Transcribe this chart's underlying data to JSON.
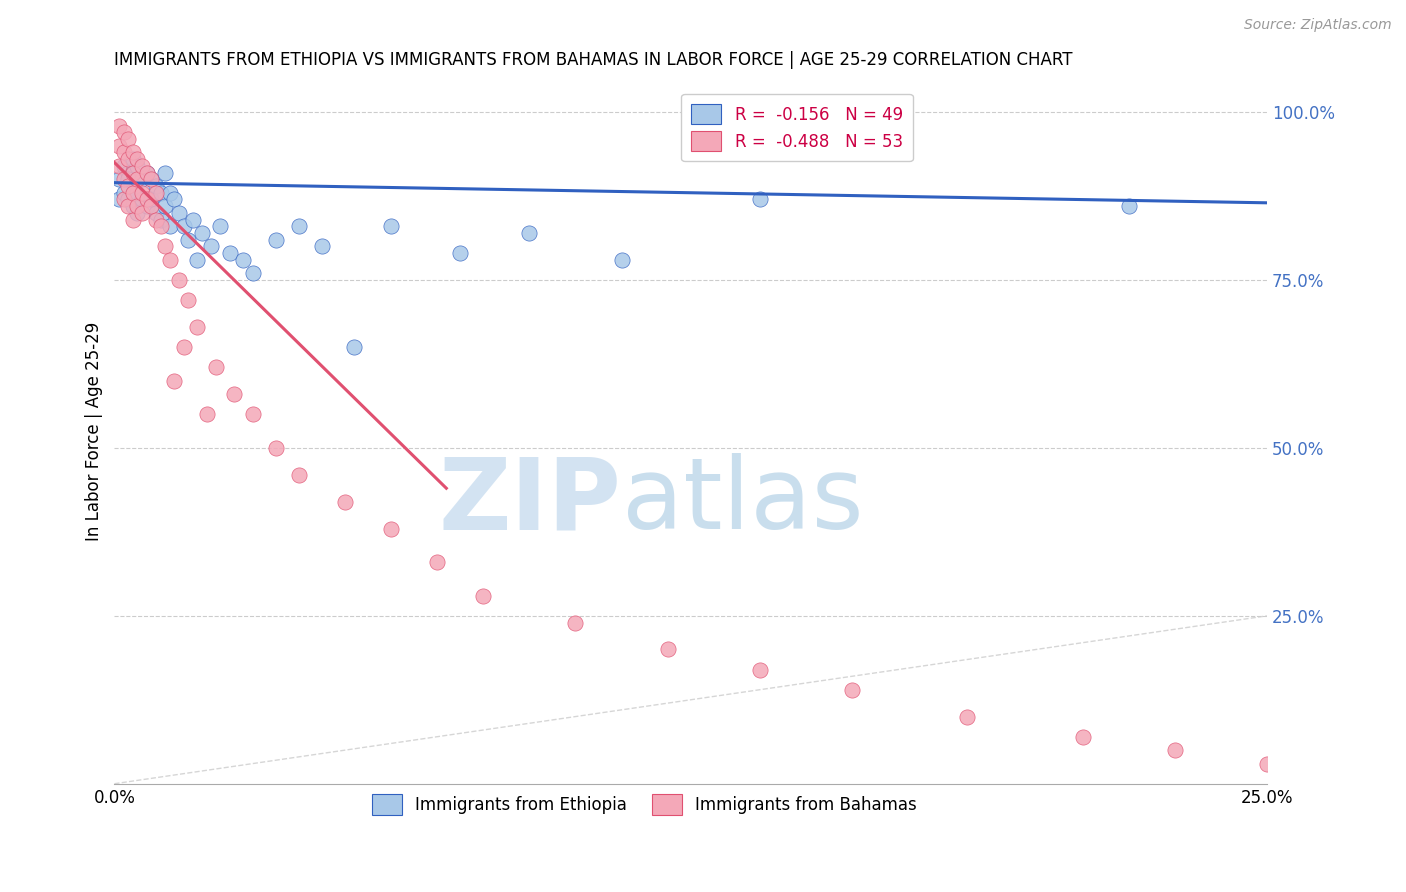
{
  "title": "IMMIGRANTS FROM ETHIOPIA VS IMMIGRANTS FROM BAHAMAS IN LABOR FORCE | AGE 25-29 CORRELATION CHART",
  "source": "Source: ZipAtlas.com",
  "ylabel": "In Labor Force | Age 25-29",
  "xlim": [
    0.0,
    0.25
  ],
  "ylim": [
    0.0,
    1.05
  ],
  "color_ethiopia": "#a8c8e8",
  "color_bahamas": "#f4a8b8",
  "trendline_ethiopia_color": "#3060c0",
  "trendline_bahamas_color": "#e05070",
  "diagonal_color": "#cccccc",
  "ethiopia_x": [
    0.001,
    0.001,
    0.002,
    0.002,
    0.003,
    0.003,
    0.003,
    0.004,
    0.004,
    0.004,
    0.005,
    0.005,
    0.005,
    0.006,
    0.006,
    0.007,
    0.007,
    0.008,
    0.008,
    0.009,
    0.009,
    0.01,
    0.01,
    0.011,
    0.011,
    0.012,
    0.012,
    0.013,
    0.014,
    0.015,
    0.016,
    0.017,
    0.018,
    0.019,
    0.021,
    0.023,
    0.025,
    0.028,
    0.03,
    0.035,
    0.04,
    0.045,
    0.052,
    0.06,
    0.075,
    0.09,
    0.11,
    0.14,
    0.22
  ],
  "ethiopia_y": [
    0.9,
    0.87,
    0.92,
    0.88,
    0.91,
    0.87,
    0.9,
    0.93,
    0.88,
    0.86,
    0.92,
    0.88,
    0.85,
    0.9,
    0.87,
    0.91,
    0.86,
    0.9,
    0.87,
    0.89,
    0.85,
    0.88,
    0.84,
    0.91,
    0.86,
    0.88,
    0.83,
    0.87,
    0.85,
    0.83,
    0.81,
    0.84,
    0.78,
    0.82,
    0.8,
    0.83,
    0.79,
    0.78,
    0.76,
    0.81,
    0.83,
    0.8,
    0.65,
    0.83,
    0.79,
    0.82,
    0.78,
    0.87,
    0.86
  ],
  "bahamas_x": [
    0.001,
    0.001,
    0.001,
    0.002,
    0.002,
    0.002,
    0.002,
    0.003,
    0.003,
    0.003,
    0.003,
    0.004,
    0.004,
    0.004,
    0.004,
    0.005,
    0.005,
    0.005,
    0.006,
    0.006,
    0.006,
    0.007,
    0.007,
    0.008,
    0.008,
    0.009,
    0.009,
    0.01,
    0.011,
    0.012,
    0.014,
    0.016,
    0.018,
    0.022,
    0.026,
    0.03,
    0.035,
    0.04,
    0.05,
    0.06,
    0.07,
    0.08,
    0.1,
    0.12,
    0.14,
    0.16,
    0.185,
    0.21,
    0.23,
    0.25,
    0.013,
    0.015,
    0.02
  ],
  "bahamas_y": [
    0.98,
    0.95,
    0.92,
    0.97,
    0.94,
    0.9,
    0.87,
    0.96,
    0.93,
    0.89,
    0.86,
    0.94,
    0.91,
    0.88,
    0.84,
    0.93,
    0.9,
    0.86,
    0.92,
    0.88,
    0.85,
    0.91,
    0.87,
    0.9,
    0.86,
    0.88,
    0.84,
    0.83,
    0.8,
    0.78,
    0.75,
    0.72,
    0.68,
    0.62,
    0.58,
    0.55,
    0.5,
    0.46,
    0.42,
    0.38,
    0.33,
    0.28,
    0.24,
    0.2,
    0.17,
    0.14,
    0.1,
    0.07,
    0.05,
    0.03,
    0.6,
    0.65,
    0.55
  ],
  "trendline_eth_x0": 0.0,
  "trendline_eth_x1": 0.25,
  "trendline_eth_y0": 0.895,
  "trendline_eth_y1": 0.865,
  "trendline_bah_x0": 0.0,
  "trendline_bah_x1": 0.072,
  "trendline_bah_y0": 0.925,
  "trendline_bah_y1": 0.44
}
